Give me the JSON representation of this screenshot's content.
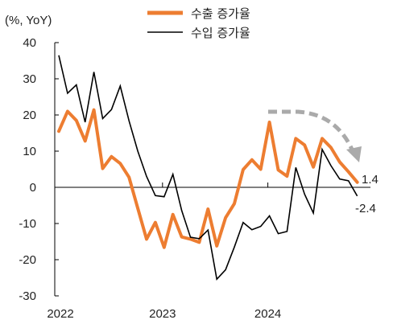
{
  "chart_data": {
    "type": "line",
    "unit_label": "(%, YoY)",
    "ylim": [
      -30,
      40
    ],
    "yticks": [
      40,
      30,
      20,
      10,
      0,
      -10,
      -20,
      -30
    ],
    "ytick_labels": [
      "40",
      "30",
      "20",
      "10",
      "0",
      "-10",
      "-20",
      "-30"
    ],
    "xtick_labels": [
      "2022",
      "2023",
      "2024"
    ],
    "x_count": 36,
    "year_start_index": [
      0,
      12,
      24
    ],
    "series": [
      {
        "name": "수출 증가율",
        "color": "#ED7D31",
        "values": [
          15.5,
          21.0,
          18.5,
          12.8,
          21.4,
          5.2,
          8.5,
          6.6,
          2.8,
          -5.8,
          -14.3,
          -9.7,
          -16.6,
          -7.5,
          -13.7,
          -14.3,
          -15.2,
          -6.0,
          -16.2,
          -8.4,
          -4.5,
          4.9,
          7.6,
          5.0,
          18.0,
          4.8,
          3.1,
          13.5,
          11.7,
          5.6,
          13.5,
          11.0,
          7.0,
          4.3,
          1.4
        ]
      },
      {
        "name": "수입 증가율",
        "color": "#000000",
        "values": [
          36.5,
          26.0,
          28.3,
          18.0,
          31.9,
          19.0,
          21.5,
          28.0,
          18.4,
          10.0,
          3.0,
          -2.3,
          -2.6,
          3.6,
          -6.4,
          -13.8,
          -14.2,
          -11.8,
          -25.4,
          -22.8,
          -16.5,
          -9.7,
          -11.7,
          -10.8,
          -7.9,
          -12.8,
          -12.2,
          5.5,
          -1.9,
          -7.1,
          10.5,
          6.0,
          2.3,
          1.8,
          -2.4
        ]
      }
    ],
    "end_labels": [
      "1.4",
      "-2.4"
    ],
    "trend_arrow": {
      "color": "#AAAAAA"
    }
  }
}
